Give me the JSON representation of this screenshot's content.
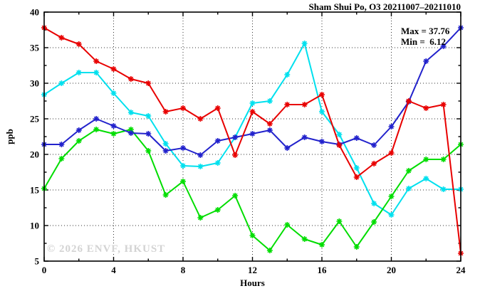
{
  "title": "Sham Shui Po, O3 20211007–20211010",
  "annotation": {
    "max_label": "Max = 37.76",
    "min_label": "Min =  6.12"
  },
  "watermark": "© 2026 ENVF, HKUST",
  "axes": {
    "y_label": "ppb",
    "x_label": "Hours"
  },
  "chart_data": {
    "type": "line",
    "title": "Sham Shui Po, O3 20211007–20211010",
    "xlabel": "Hours",
    "ylabel": "ppb",
    "xlim": [
      0,
      24
    ],
    "ylim": [
      5,
      40
    ],
    "x_major_ticks": [
      0,
      4,
      8,
      12,
      16,
      20,
      24
    ],
    "x_minor_ticks": [
      2,
      6,
      10,
      14,
      18,
      22
    ],
    "y_major_ticks": [
      5,
      10,
      15,
      20,
      25,
      30,
      35,
      40
    ],
    "y_minor_ticks": [
      7.5,
      12.5,
      17.5,
      22.5,
      27.5,
      32.5,
      37.5
    ],
    "grid": true,
    "legend_position": "none",
    "stat_max": 37.76,
    "stat_min": 6.12,
    "x": [
      0,
      1,
      2,
      3,
      4,
      5,
      6,
      7,
      8,
      9,
      10,
      11,
      12,
      13,
      14,
      15,
      16,
      17,
      18,
      19,
      20,
      21,
      22,
      23,
      24
    ],
    "series": [
      {
        "name": "series-cyan",
        "color": "#00e0ee",
        "values": [
          28.4,
          30.0,
          31.5,
          31.5,
          28.6,
          25.9,
          25.4,
          21.5,
          18.4,
          18.3,
          18.8,
          22.4,
          27.2,
          27.5,
          31.2,
          35.6,
          26.0,
          22.8,
          18.1,
          13.1,
          11.5,
          15.2,
          16.6,
          15.1,
          15.1
        ]
      },
      {
        "name": "series-green",
        "color": "#00dd00",
        "values": [
          15.2,
          19.4,
          21.9,
          23.5,
          22.9,
          23.5,
          20.5,
          14.3,
          16.2,
          11.1,
          12.2,
          14.2,
          8.6,
          6.5,
          10.1,
          8.1,
          7.3,
          10.6,
          7.0,
          10.5,
          14.1,
          17.7,
          19.3,
          19.3,
          21.4
        ]
      },
      {
        "name": "series-blue",
        "color": "#2222cc",
        "values": [
          21.4,
          21.4,
          23.4,
          25.0,
          24.0,
          23.0,
          22.9,
          20.5,
          20.9,
          19.9,
          21.9,
          22.4,
          22.9,
          23.4,
          20.9,
          22.4,
          21.8,
          21.4,
          22.3,
          21.3,
          23.9,
          27.4,
          33.1,
          35.2,
          37.8
        ]
      },
      {
        "name": "series-red",
        "color": "#e80000",
        "values": [
          37.8,
          36.4,
          35.5,
          33.1,
          32.0,
          30.6,
          30.0,
          26.0,
          26.5,
          25.0,
          26.5,
          19.9,
          26.0,
          24.3,
          27.0,
          27.0,
          28.4,
          21.3,
          16.8,
          18.7,
          20.2,
          27.5,
          26.5,
          27.0,
          6.1
        ]
      }
    ]
  }
}
